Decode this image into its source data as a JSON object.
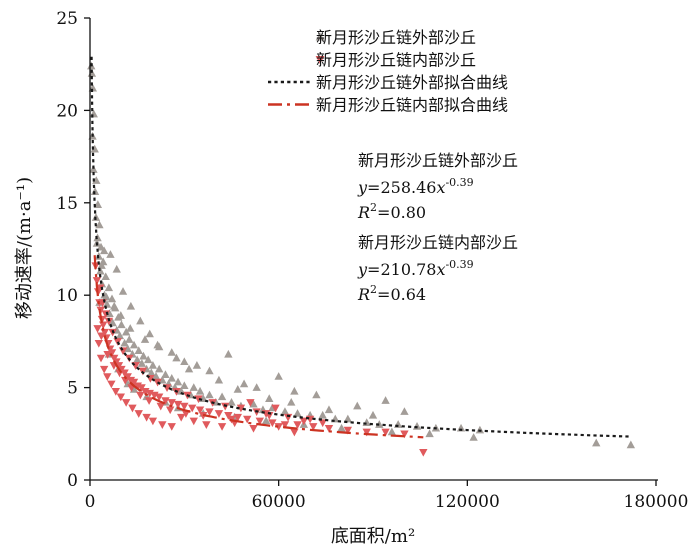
{
  "chart_data": {
    "type": "scatter",
    "title": "",
    "xlabel": "底面积/m²",
    "ylabel": "移动速率/(m·a⁻¹)",
    "xlim": [
      0,
      180000
    ],
    "ylim": [
      0,
      25
    ],
    "x_ticks": [
      0,
      60000,
      120000,
      180000
    ],
    "y_ticks": [
      0,
      5,
      10,
      15,
      20,
      25
    ],
    "legend_placement": "top-right",
    "grid": false,
    "series": [
      {
        "name": "新月形沙丘链外部沙丘",
        "kind": "scatter",
        "marker": "triangle-up",
        "color": "#a39d98",
        "points": [
          [
            400,
            22.4
          ],
          [
            600,
            22.0
          ],
          [
            900,
            21.2
          ],
          [
            1200,
            19.8
          ],
          [
            800,
            18.6
          ],
          [
            1500,
            17.9
          ],
          [
            1100,
            16.8
          ],
          [
            2000,
            16.2
          ],
          [
            1600,
            15.6
          ],
          [
            2500,
            14.9
          ],
          [
            1900,
            14.2
          ],
          [
            3000,
            13.8
          ],
          [
            2400,
            13.1
          ],
          [
            3500,
            12.6
          ],
          [
            2800,
            12.1
          ],
          [
            4200,
            11.8
          ],
          [
            3300,
            11.3
          ],
          [
            5000,
            11.0
          ],
          [
            3800,
            10.6
          ],
          [
            6000,
            10.4
          ],
          [
            4600,
            10.0
          ],
          [
            7000,
            9.8
          ],
          [
            5400,
            9.5
          ],
          [
            8000,
            9.3
          ],
          [
            6200,
            9.0
          ],
          [
            9000,
            8.8
          ],
          [
            7200,
            8.5
          ],
          [
            10000,
            8.4
          ],
          [
            8500,
            8.1
          ],
          [
            11500,
            8.0
          ],
          [
            9500,
            7.8
          ],
          [
            12500,
            7.6
          ],
          [
            11000,
            7.4
          ],
          [
            14000,
            7.3
          ],
          [
            12000,
            7.1
          ],
          [
            15500,
            7.0
          ],
          [
            13500,
            6.8
          ],
          [
            17000,
            6.7
          ],
          [
            15000,
            6.5
          ],
          [
            18500,
            6.5
          ],
          [
            16500,
            6.3
          ],
          [
            20000,
            6.2
          ],
          [
            18000,
            6.0
          ],
          [
            22000,
            6.0
          ],
          [
            19500,
            5.8
          ],
          [
            24000,
            5.7
          ],
          [
            21000,
            5.6
          ],
          [
            26000,
            5.5
          ],
          [
            23000,
            5.4
          ],
          [
            28000,
            5.3
          ],
          [
            25000,
            5.2
          ],
          [
            30000,
            5.1
          ],
          [
            27000,
            5.0
          ],
          [
            33000,
            5.0
          ],
          [
            29000,
            4.8
          ],
          [
            35000,
            4.8
          ],
          [
            32000,
            4.6
          ],
          [
            38000,
            4.6
          ],
          [
            36000,
            4.4
          ],
          [
            42000,
            4.5
          ],
          [
            40000,
            4.2
          ],
          [
            45000,
            4.2
          ],
          [
            48000,
            4.0
          ],
          [
            52000,
            4.1
          ],
          [
            55000,
            3.8
          ],
          [
            58000,
            3.9
          ],
          [
            62000,
            3.7
          ],
          [
            66000,
            3.6
          ],
          [
            70000,
            3.5
          ],
          [
            74000,
            3.5
          ],
          [
            78000,
            3.3
          ],
          [
            82000,
            3.3
          ],
          [
            88000,
            3.1
          ],
          [
            92000,
            3.0
          ],
          [
            98000,
            3.0
          ],
          [
            104000,
            2.9
          ],
          [
            110000,
            2.8
          ],
          [
            118000,
            2.8
          ],
          [
            124000,
            2.7
          ],
          [
            3000,
            9.6
          ],
          [
            4500,
            12.4
          ],
          [
            6500,
            12.2
          ],
          [
            8500,
            11.4
          ],
          [
            10500,
            10.2
          ],
          [
            13000,
            9.4
          ],
          [
            16000,
            8.6
          ],
          [
            19000,
            7.9
          ],
          [
            22000,
            7.2
          ],
          [
            26000,
            6.9
          ],
          [
            30000,
            6.4
          ],
          [
            34000,
            6.2
          ],
          [
            38000,
            5.9
          ],
          [
            44000,
            6.8
          ],
          [
            49000,
            5.2
          ],
          [
            53000,
            5.0
          ],
          [
            60000,
            5.6
          ],
          [
            65000,
            4.8
          ],
          [
            72000,
            4.6
          ],
          [
            85000,
            4.0
          ],
          [
            94000,
            4.3
          ],
          [
            100000,
            3.7
          ],
          [
            12000,
            5.2
          ],
          [
            18000,
            4.5
          ],
          [
            24000,
            4.2
          ],
          [
            14000,
            4.9
          ],
          [
            9000,
            6.0
          ],
          [
            6000,
            6.8
          ],
          [
            28000,
            3.9
          ],
          [
            36000,
            3.6
          ],
          [
            46000,
            3.4
          ],
          [
            56000,
            3.2
          ],
          [
            68000,
            3.0
          ],
          [
            80000,
            2.8
          ],
          [
            96000,
            2.6
          ],
          [
            108000,
            2.5
          ],
          [
            122000,
            2.3
          ],
          [
            161000,
            2.0
          ],
          [
            172000,
            1.9
          ],
          [
            2200,
            12.8
          ],
          [
            3700,
            11.6
          ],
          [
            5200,
            9.9
          ],
          [
            7700,
            9.4
          ],
          [
            9800,
            8.9
          ],
          [
            12800,
            8.2
          ],
          [
            17500,
            7.6
          ],
          [
            21500,
            7.3
          ],
          [
            27500,
            6.6
          ],
          [
            31500,
            6.0
          ],
          [
            41000,
            5.4
          ],
          [
            47000,
            4.9
          ],
          [
            57000,
            4.4
          ],
          [
            64000,
            4.2
          ],
          [
            76000,
            3.8
          ],
          [
            90000,
            3.5
          ]
        ]
      },
      {
        "name": "新月形沙丘链内部沙丘",
        "kind": "scatter",
        "marker": "triangle-down",
        "color": "#e05a5d",
        "points": [
          [
            1800,
            11.6
          ],
          [
            2200,
            10.8
          ],
          [
            2600,
            10.2
          ],
          [
            3000,
            9.6
          ],
          [
            3400,
            9.2
          ],
          [
            3800,
            8.7
          ],
          [
            4200,
            8.4
          ],
          [
            4700,
            8.0
          ],
          [
            5200,
            7.7
          ],
          [
            5800,
            7.4
          ],
          [
            6400,
            7.1
          ],
          [
            7000,
            6.9
          ],
          [
            7700,
            6.6
          ],
          [
            8400,
            6.4
          ],
          [
            9200,
            6.2
          ],
          [
            10000,
            6.0
          ],
          [
            11000,
            5.8
          ],
          [
            12000,
            5.6
          ],
          [
            13000,
            5.4
          ],
          [
            14000,
            5.3
          ],
          [
            15200,
            5.1
          ],
          [
            16400,
            5.0
          ],
          [
            17600,
            4.8
          ],
          [
            19000,
            4.7
          ],
          [
            20500,
            4.6
          ],
          [
            22000,
            4.5
          ],
          [
            24000,
            4.3
          ],
          [
            26000,
            4.2
          ],
          [
            28000,
            4.1
          ],
          [
            30000,
            4.0
          ],
          [
            32500,
            3.9
          ],
          [
            35000,
            3.8
          ],
          [
            38000,
            3.7
          ],
          [
            41000,
            3.6
          ],
          [
            44000,
            3.5
          ],
          [
            47000,
            3.4
          ],
          [
            50000,
            3.3
          ],
          [
            54000,
            3.2
          ],
          [
            58000,
            3.1
          ],
          [
            62000,
            3.0
          ],
          [
            66000,
            3.0
          ],
          [
            71000,
            2.9
          ],
          [
            76000,
            2.8
          ],
          [
            82000,
            2.7
          ],
          [
            88000,
            2.6
          ],
          [
            94000,
            2.6
          ],
          [
            100000,
            2.5
          ],
          [
            106000,
            1.5
          ],
          [
            2800,
            7.4
          ],
          [
            3500,
            6.6
          ],
          [
            4500,
            6.0
          ],
          [
            5500,
            5.6
          ],
          [
            6800,
            5.2
          ],
          [
            8200,
            4.8
          ],
          [
            9800,
            4.5
          ],
          [
            11500,
            4.2
          ],
          [
            13500,
            3.9
          ],
          [
            15500,
            3.6
          ],
          [
            18000,
            3.4
          ],
          [
            20000,
            3.2
          ],
          [
            23000,
            3.0
          ],
          [
            26000,
            2.9
          ],
          [
            29000,
            3.4
          ],
          [
            33000,
            3.2
          ],
          [
            37000,
            3.0
          ],
          [
            42000,
            2.9
          ],
          [
            46000,
            3.1
          ],
          [
            52000,
            2.8
          ],
          [
            56000,
            3.6
          ],
          [
            60000,
            2.9
          ],
          [
            65000,
            2.6
          ],
          [
            70000,
            3.3
          ],
          [
            3200,
            10.4
          ],
          [
            4000,
            9.6
          ],
          [
            5000,
            9.0
          ],
          [
            6000,
            8.6
          ],
          [
            7200,
            8.0
          ],
          [
            8800,
            7.5
          ],
          [
            10500,
            7.0
          ],
          [
            12500,
            6.6
          ],
          [
            14500,
            6.2
          ],
          [
            16800,
            5.9
          ],
          [
            19200,
            5.5
          ],
          [
            21500,
            5.3
          ],
          [
            24500,
            5.0
          ],
          [
            27500,
            4.8
          ],
          [
            31000,
            4.6
          ],
          [
            34500,
            4.4
          ],
          [
            39000,
            4.2
          ],
          [
            43000,
            4.0
          ],
          [
            48000,
            3.9
          ],
          [
            53000,
            3.7
          ],
          [
            57000,
            3.5
          ],
          [
            63000,
            3.4
          ],
          [
            68000,
            3.2
          ],
          [
            74000,
            3.1
          ],
          [
            2400,
            8.2
          ],
          [
            3600,
            7.8
          ],
          [
            5600,
            6.8
          ],
          [
            7600,
            6.2
          ],
          [
            9400,
            5.8
          ],
          [
            11200,
            5.4
          ],
          [
            13200,
            5.0
          ],
          [
            16000,
            4.6
          ],
          [
            18800,
            4.3
          ],
          [
            22500,
            4.0
          ],
          [
            25500,
            3.8
          ],
          [
            30500,
            3.6
          ],
          [
            36000,
            3.5
          ],
          [
            45000,
            3.3
          ],
          [
            51000,
            4.2
          ],
          [
            59000,
            3.9
          ]
        ]
      },
      {
        "name": "新月形沙丘链外部拟合曲线",
        "kind": "fit",
        "style": "dotted",
        "color": "#1a1a1a",
        "a": 258.46,
        "b": -0.39,
        "x_range": [
          500,
          172000
        ]
      },
      {
        "name": "新月形沙丘链内部拟合曲线",
        "kind": "fit",
        "style": "dash-dot",
        "color": "#cc3322",
        "a": 210.78,
        "b": -0.39,
        "x_range": [
          1500,
          106000
        ]
      }
    ],
    "annotations": [
      {
        "title": "新月形沙丘链外部沙丘",
        "eq_lhs": "y",
        "eq_coef": "=258.46",
        "eq_var": "x",
        "eq_exp": "-0.39",
        "r2_label": "R",
        "r2_sup": "2",
        "r2_value": "=0.80"
      },
      {
        "title": "新月形沙丘链内部沙丘",
        "eq_lhs": "y",
        "eq_coef": "=210.78",
        "eq_var": "x",
        "eq_exp": "-0.39",
        "r2_label": "R",
        "r2_sup": "2",
        "r2_value": "=0.64"
      }
    ]
  }
}
